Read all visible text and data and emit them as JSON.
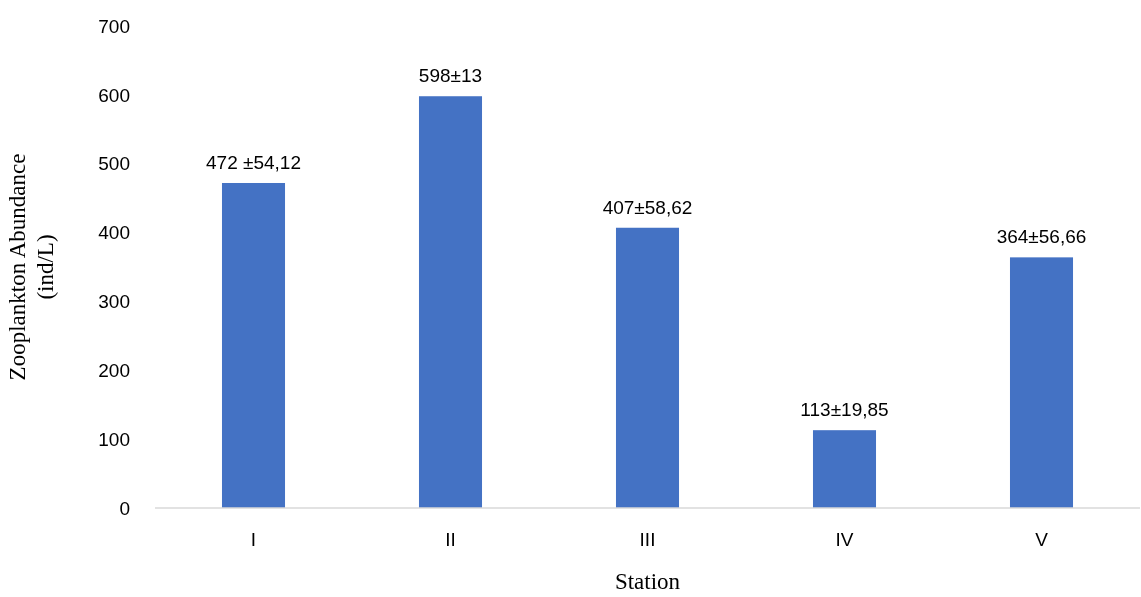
{
  "chart_data": {
    "type": "bar",
    "xlabel": "Station",
    "ylabel": "Zooplankton Abundance (ind/L)",
    "categories": [
      "I",
      "II",
      "III",
      "IV",
      "V"
    ],
    "values": [
      472,
      598,
      407,
      113,
      364
    ],
    "value_labels": [
      "472 ±54,12",
      "598±13",
      "407±58,62",
      "113±19,85",
      "364±56,66"
    ],
    "color": "#4472c4",
    "ylim": [
      0,
      700
    ],
    "yticks": [
      0,
      100,
      200,
      300,
      400,
      500,
      600,
      700
    ],
    "grid": false
  }
}
